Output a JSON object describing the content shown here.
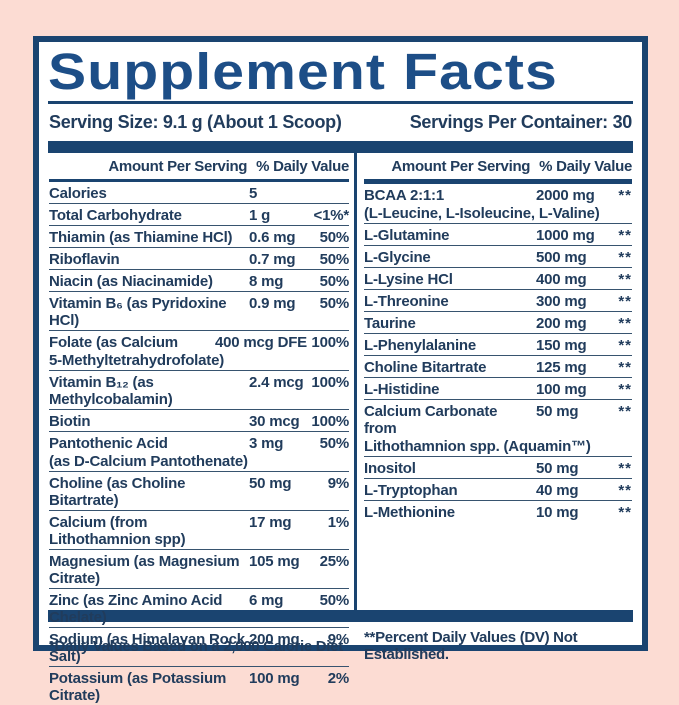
{
  "title": "Supplement Facts",
  "serving": {
    "size_label": "Serving Size: 9.1 g (About 1 Scoop)",
    "per_container_label": "Servings Per Container: 30"
  },
  "table_headers": {
    "amount": "Amount Per Serving",
    "daily_value": "% Daily Value"
  },
  "left_column": {
    "rows": [
      {
        "name": "Calories",
        "amount": "5",
        "dv": ""
      },
      {
        "name": "Total Carbohydrate",
        "amount": "1 g",
        "dv": "<1%*"
      },
      {
        "name": "Thiamin (as Thiamine HCl)",
        "amount": "0.6 mg",
        "dv": "50%"
      },
      {
        "name": "Riboflavin",
        "amount": "0.7 mg",
        "dv": "50%"
      },
      {
        "name": "Niacin (as Niacinamide)",
        "amount": "8 mg",
        "dv": "50%"
      },
      {
        "name": "Vitamin B₆ (as Pyridoxine HCl)",
        "amount": "0.9 mg",
        "dv": "50%"
      },
      {
        "name": "Folate (as Calcium",
        "line2": "5-Methyltetrahydrofolate)",
        "amount": "400 mcg DFE",
        "dv": "100%"
      },
      {
        "name": "Vitamin B₁₂ (as Methylcobalamin)",
        "amount": "2.4 mcg",
        "dv": "100%"
      },
      {
        "name": "Biotin",
        "amount": "30 mcg",
        "dv": "100%"
      },
      {
        "name": "Pantothenic Acid",
        "line2": "(as D-Calcium Pantothenate)",
        "amount": "3 mg",
        "dv": "50%"
      },
      {
        "name": "Choline (as Choline Bitartrate)",
        "amount": "50 mg",
        "dv": "9%"
      },
      {
        "name": "Calcium (from Lithothamnion spp)",
        "amount": "17 mg",
        "dv": "1%"
      },
      {
        "name": "Magnesium (as Magnesium Citrate)",
        "amount": "105 mg",
        "dv": "25%"
      },
      {
        "name": "Zinc (as Zinc Amino Acid Chelate)",
        "amount": "6 mg",
        "dv": "50%"
      },
      {
        "name": "Sodium (as Himalayan Rock Salt)",
        "amount": "200 mg",
        "dv": "9%"
      },
      {
        "name": "Potassium (as Potassium Citrate)",
        "amount": "100 mg",
        "dv": "2%"
      }
    ]
  },
  "right_column": {
    "rows": [
      {
        "name": "BCAA 2:1:1",
        "line2": "(L-Leucine, L-Isoleucine, L-Valine)",
        "amount": "2000 mg",
        "dv": "**"
      },
      {
        "name": "L-Glutamine",
        "amount": "1000 mg",
        "dv": "**"
      },
      {
        "name": "L-Glycine",
        "amount": "500 mg",
        "dv": "**"
      },
      {
        "name": "L-Lysine HCl",
        "amount": "400 mg",
        "dv": "**"
      },
      {
        "name": "L-Threonine",
        "amount": "300 mg",
        "dv": "**"
      },
      {
        "name": "Taurine",
        "amount": "200 mg",
        "dv": "**"
      },
      {
        "name": "L-Phenylalanine",
        "amount": "150 mg",
        "dv": "**"
      },
      {
        "name": "Choline Bitartrate",
        "amount": "125 mg",
        "dv": "**"
      },
      {
        "name": "L-Histidine",
        "amount": "100 mg",
        "dv": "**"
      },
      {
        "name": "Calcium Carbonate from",
        "line2": "Lithothamnion spp. (Aquamin™)",
        "amount": "50 mg",
        "dv": "**"
      },
      {
        "name": "Inositol",
        "amount": "50 mg",
        "dv": "**"
      },
      {
        "name": "L-Tryptophan",
        "amount": "40 mg",
        "dv": "**"
      },
      {
        "name": "L-Methionine",
        "amount": "10 mg",
        "dv": "**"
      }
    ]
  },
  "footnotes": {
    "daily_value_note": "*Daily Values Based on a 2,000 Calorie Diet",
    "not_established_note": "**Percent Daily Values (DV) Not Established."
  },
  "colors": {
    "pink_background": "#fcdcd3",
    "navy": "#1a4470",
    "title_blue": "#1d4e87",
    "text": "#213c5c",
    "row_line": "#37536f",
    "label_background": "#ffffff"
  }
}
